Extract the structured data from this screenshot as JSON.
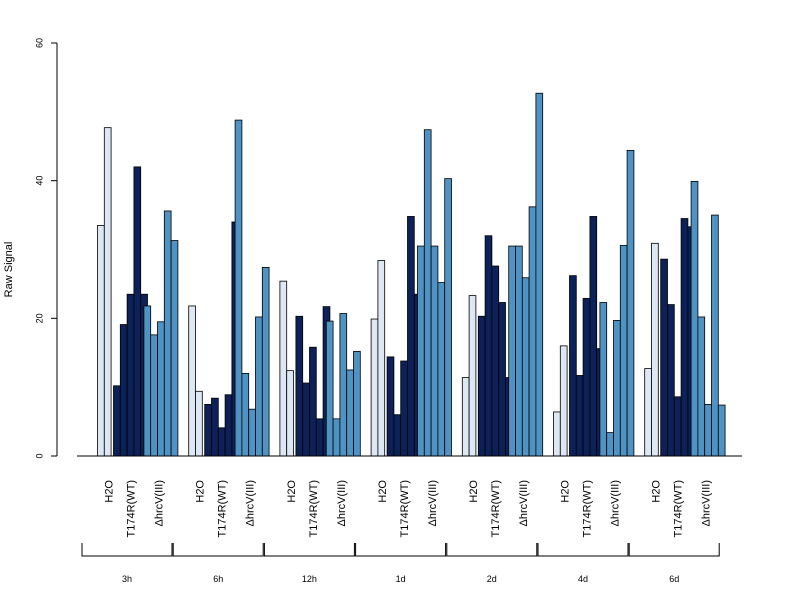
{
  "chart_data": {
    "type": "bar",
    "ylabel": "Raw Signal",
    "xlabel": "",
    "ylim": [
      0,
      60
    ],
    "yticks": [
      0,
      20,
      40,
      60
    ],
    "grid": false,
    "legend": "none",
    "colors": {
      "H2O": "#dde8f4",
      "T174R(WT)": "#0c2157",
      "ΔhrcV(III)": "#4f93c4"
    },
    "time_points": [
      "3h",
      "6h",
      "12h",
      "1d",
      "2d",
      "4d",
      "6d"
    ],
    "conditions": [
      "H2O",
      "T174R(WT)",
      "ΔhrcV(III)"
    ],
    "groups": [
      {
        "time": "3h",
        "conditions": [
          {
            "name": "H2O",
            "values": [
              33.5,
              47.7
            ]
          },
          {
            "name": "T174R(WT)",
            "values": [
              10.2,
              19.1,
              23.5,
              42.0,
              23.5
            ]
          },
          {
            "name": "ΔhrcV(III)",
            "values": [
              21.8,
              17.6,
              19.5,
              35.6,
              31.3
            ]
          }
        ]
      },
      {
        "time": "6h",
        "conditions": [
          {
            "name": "H2O",
            "values": [
              21.8,
              9.4
            ]
          },
          {
            "name": "T174R(WT)",
            "values": [
              7.5,
              8.4,
              4.1,
              8.9,
              34.0
            ]
          },
          {
            "name": "ΔhrcV(III)",
            "values": [
              48.8,
              12.0,
              6.8,
              20.2,
              27.4
            ]
          }
        ]
      },
      {
        "time": "12h",
        "conditions": [
          {
            "name": "H2O",
            "values": [
              25.4,
              12.4
            ]
          },
          {
            "name": "T174R(WT)",
            "values": [
              20.3,
              10.6,
              15.8,
              5.4,
              21.7
            ]
          },
          {
            "name": "ΔhrcV(III)",
            "values": [
              19.6,
              5.4,
              20.7,
              12.5,
              15.2
            ]
          }
        ]
      },
      {
        "time": "1d",
        "conditions": [
          {
            "name": "H2O",
            "values": [
              19.9,
              28.4
            ]
          },
          {
            "name": "T174R(WT)",
            "values": [
              14.4,
              6.0,
              13.8,
              34.8,
              23.5
            ]
          },
          {
            "name": "ΔhrcV(III)",
            "values": [
              30.5,
              47.4,
              30.5,
              25.2,
              40.3
            ]
          }
        ]
      },
      {
        "time": "2d",
        "conditions": [
          {
            "name": "H2O",
            "values": [
              11.4,
              23.3
            ]
          },
          {
            "name": "T174R(WT)",
            "values": [
              20.3,
              32.0,
              27.6,
              22.3,
              11.4
            ]
          },
          {
            "name": "ΔhrcV(III)",
            "values": [
              30.5,
              30.5,
              25.9,
              36.2,
              52.7
            ]
          }
        ]
      },
      {
        "time": "4d",
        "conditions": [
          {
            "name": "H2O",
            "values": [
              6.4,
              16.0
            ]
          },
          {
            "name": "T174R(WT)",
            "values": [
              26.2,
              11.7,
              22.9,
              34.8,
              15.6
            ]
          },
          {
            "name": "ΔhrcV(III)",
            "values": [
              22.3,
              3.4,
              19.7,
              30.6,
              44.4
            ]
          }
        ]
      },
      {
        "time": "6d",
        "conditions": [
          {
            "name": "H2O",
            "values": [
              12.7,
              30.9
            ]
          },
          {
            "name": "T174R(WT)",
            "values": [
              28.6,
              22.0,
              8.6,
              34.5,
              33.3
            ]
          },
          {
            "name": "ΔhrcV(III)",
            "values": [
              39.9,
              20.2,
              7.5,
              35.0,
              7.4
            ]
          }
        ]
      }
    ]
  }
}
